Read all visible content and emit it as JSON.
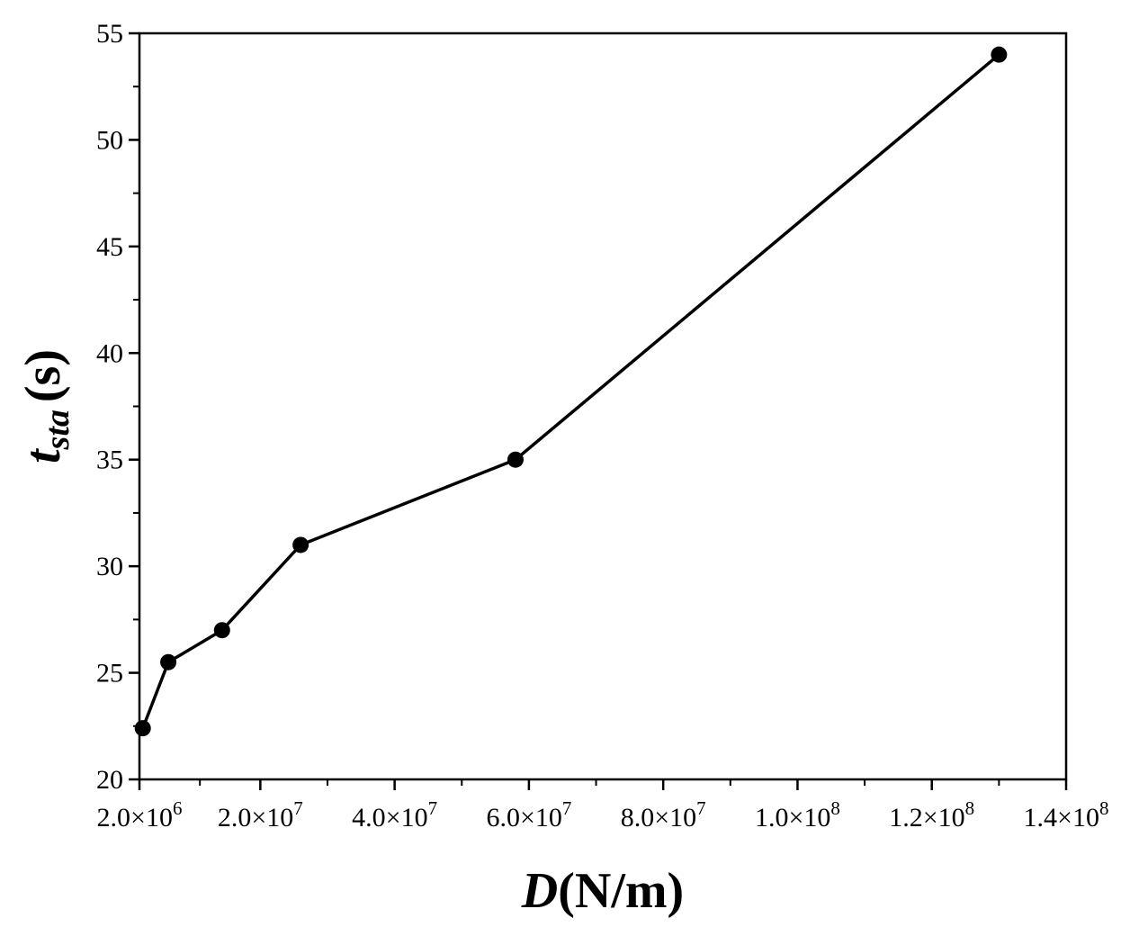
{
  "chart_data": {
    "type": "line",
    "title": "",
    "xlabel": {
      "symbol": "D",
      "unit": "(N/m)"
    },
    "ylabel": {
      "symbol": "t",
      "subscript": "sta",
      "unit": "(s)"
    },
    "xlim": [
      2000000,
      140000000
    ],
    "ylim": [
      20,
      55
    ],
    "x_ticks": [
      {
        "value": 2000000,
        "mantissa": "2.0",
        "exponent": "6"
      },
      {
        "value": 20000000,
        "mantissa": "2.0",
        "exponent": "7"
      },
      {
        "value": 40000000,
        "mantissa": "4.0",
        "exponent": "7"
      },
      {
        "value": 60000000,
        "mantissa": "6.0",
        "exponent": "7"
      },
      {
        "value": 80000000,
        "mantissa": "8.0",
        "exponent": "7"
      },
      {
        "value": 100000000,
        "mantissa": "1.0",
        "exponent": "8"
      },
      {
        "value": 120000000,
        "mantissa": "1.2",
        "exponent": "8"
      },
      {
        "value": 140000000,
        "mantissa": "1.4",
        "exponent": "8"
      }
    ],
    "y_ticks": [
      20,
      25,
      30,
      35,
      40,
      45,
      50,
      55
    ],
    "series": [
      {
        "x": [
          2500000,
          6300000,
          14300000,
          26000000,
          58000000,
          130000000
        ],
        "y": [
          22.4,
          25.5,
          27.0,
          31.0,
          35.0,
          54.0
        ]
      }
    ],
    "grid": false,
    "legend": "none",
    "colors": {
      "line": "#000000",
      "marker": "#000000"
    }
  }
}
